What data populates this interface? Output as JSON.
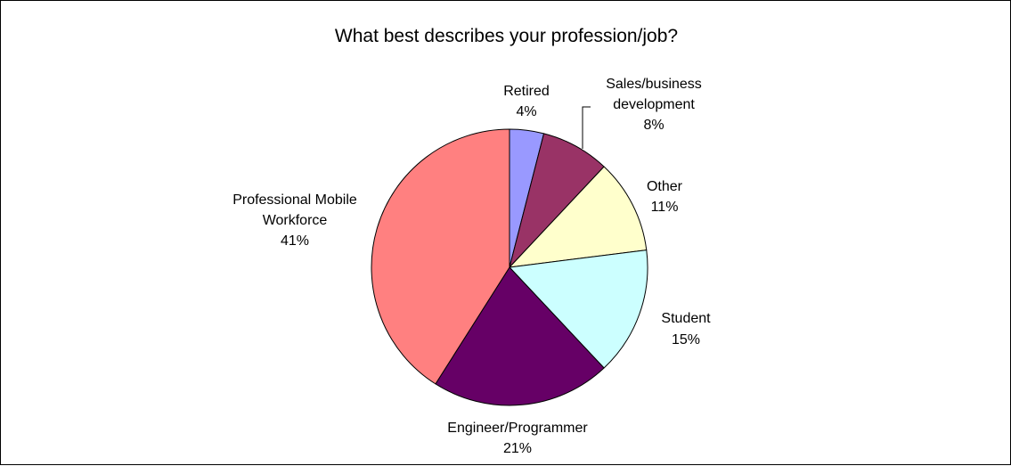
{
  "chart_data": {
    "type": "pie",
    "title": "What best describes your profession/job?",
    "slices": [
      {
        "label": [
          "Retired"
        ],
        "percent_label": "4%",
        "value": 4,
        "color": "#9999ff"
      },
      {
        "label": [
          "Sales/business",
          "development"
        ],
        "percent_label": "8%",
        "value": 8,
        "color": "#993366"
      },
      {
        "label": [
          "Other"
        ],
        "percent_label": "11%",
        "value": 11,
        "color": "#ffffcc"
      },
      {
        "label": [
          "Student"
        ],
        "percent_label": "15%",
        "value": 15,
        "color": "#ccffff"
      },
      {
        "label": [
          "Engineer/Programmer"
        ],
        "percent_label": "21%",
        "value": 21,
        "color": "#660066"
      },
      {
        "label": [
          "Professional Mobile",
          "Workforce"
        ],
        "percent_label": "41%",
        "value": 41,
        "color": "#ff8080"
      }
    ],
    "start": "top",
    "direction": "clockwise",
    "legend": "none"
  }
}
